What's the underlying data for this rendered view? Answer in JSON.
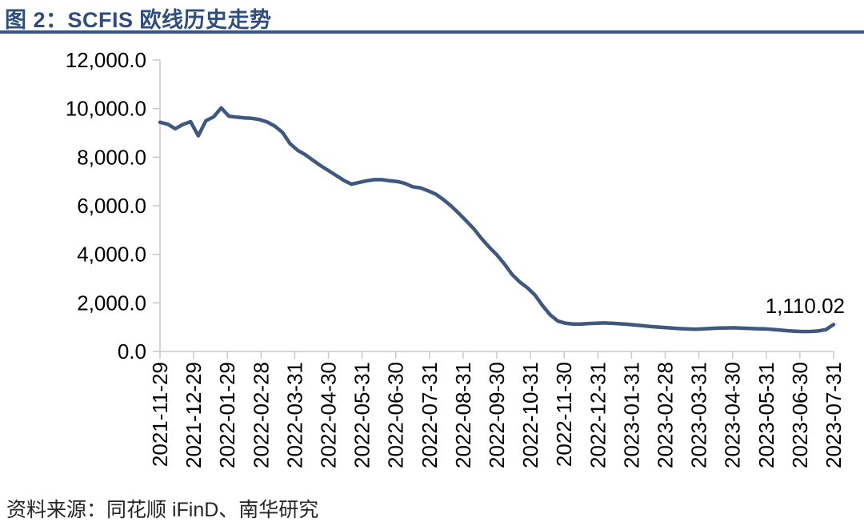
{
  "figure": {
    "title": "图 2：SCFIS 欧线历史走势",
    "source_note": "资料来源：同花顺 iFinD、南华研究"
  },
  "colors": {
    "title_text": "#2F4E7C",
    "title_rule": "#3A5684",
    "series_line": "#3E5880",
    "axis_line": "#C9C9C9",
    "tick_text": "#000000"
  },
  "chart_data": {
    "type": "line",
    "title": "SCFIS 欧线历史走势",
    "legend": false,
    "grid": false,
    "ylim": [
      0,
      12000
    ],
    "y_ticks": [
      12000,
      10000,
      8000,
      6000,
      4000,
      2000,
      0
    ],
    "y_tick_labels": [
      "12,000.0",
      "10,000.0",
      "8,000.0",
      "6,000.0",
      "4,000.0",
      "2,000.0",
      "0.0"
    ],
    "x_tick_labels": [
      "2021-11-29",
      "2021-12-29",
      "2022-01-29",
      "2022-02-28",
      "2022-03-31",
      "2022-04-30",
      "2022-05-31",
      "2022-06-30",
      "2022-07-31",
      "2022-08-31",
      "2022-09-30",
      "2022-10-31",
      "2022-11-30",
      "2022-12-31",
      "2023-01-31",
      "2023-02-28",
      "2023-03-31",
      "2023-04-30",
      "2023-05-31",
      "2023-06-30",
      "2023-07-31"
    ],
    "end_label": "1,110.02",
    "end_value": 1110.02,
    "series": [
      {
        "name": "SCFIS 欧线",
        "x": [
          "2021-11-29",
          "2021-12-06",
          "2021-12-13",
          "2021-12-20",
          "2021-12-27",
          "2022-01-03",
          "2022-01-10",
          "2022-01-17",
          "2022-01-24",
          "2022-01-31",
          "2022-02-07",
          "2022-02-14",
          "2022-02-21",
          "2022-02-28",
          "2022-03-07",
          "2022-03-14",
          "2022-03-21",
          "2022-03-28",
          "2022-04-04",
          "2022-04-11",
          "2022-04-18",
          "2022-04-25",
          "2022-05-02",
          "2022-05-09",
          "2022-05-16",
          "2022-05-23",
          "2022-05-30",
          "2022-06-06",
          "2022-06-13",
          "2022-06-20",
          "2022-06-27",
          "2022-07-04",
          "2022-07-11",
          "2022-07-18",
          "2022-07-25",
          "2022-08-01",
          "2022-08-08",
          "2022-08-15",
          "2022-08-22",
          "2022-08-29",
          "2022-09-05",
          "2022-09-12",
          "2022-09-19",
          "2022-09-26",
          "2022-10-03",
          "2022-10-10",
          "2022-10-17",
          "2022-10-24",
          "2022-10-31",
          "2022-11-07",
          "2022-11-14",
          "2022-11-21",
          "2022-11-28",
          "2022-12-05",
          "2022-12-12",
          "2022-12-19",
          "2022-12-26",
          "2023-01-02",
          "2023-01-09",
          "2023-01-16",
          "2023-01-23",
          "2023-01-30",
          "2023-02-06",
          "2023-02-13",
          "2023-02-20",
          "2023-02-27",
          "2023-03-06",
          "2023-03-13",
          "2023-03-20",
          "2023-03-27",
          "2023-04-03",
          "2023-04-10",
          "2023-04-17",
          "2023-04-24",
          "2023-05-01",
          "2023-05-08",
          "2023-05-15",
          "2023-05-22",
          "2023-05-29",
          "2023-06-05",
          "2023-06-12",
          "2023-06-19",
          "2023-06-26",
          "2023-07-03",
          "2023-07-10",
          "2023-07-17",
          "2023-07-24",
          "2023-07-31",
          "2023-08-07"
        ],
        "values": [
          9440,
          9360,
          9170,
          9350,
          9460,
          8880,
          9500,
          9660,
          10030,
          9690,
          9650,
          9620,
          9600,
          9550,
          9450,
          9280,
          9020,
          8550,
          8280,
          8100,
          7870,
          7650,
          7450,
          7250,
          7050,
          6890,
          6960,
          7030,
          7075,
          7075,
          7030,
          7000,
          6920,
          6780,
          6740,
          6620,
          6480,
          6260,
          6000,
          5700,
          5380,
          5050,
          4650,
          4300,
          3980,
          3600,
          3170,
          2860,
          2620,
          2320,
          1880,
          1500,
          1250,
          1160,
          1130,
          1130,
          1150,
          1165,
          1175,
          1160,
          1140,
          1120,
          1090,
          1060,
          1030,
          1005,
          985,
          960,
          940,
          925,
          915,
          930,
          950,
          965,
          970,
          975,
          960,
          950,
          935,
          930,
          905,
          880,
          855,
          835,
          820,
          825,
          845,
          900,
          1110.02
        ]
      }
    ]
  }
}
